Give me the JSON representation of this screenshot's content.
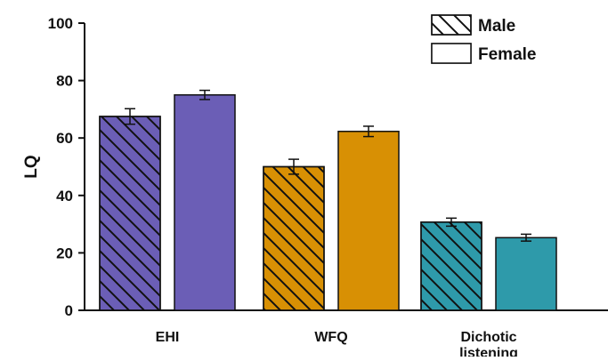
{
  "chart_data": {
    "type": "bar",
    "title": "",
    "xlabel": "",
    "ylabel": "LQ",
    "ylim": [
      0,
      100
    ],
    "yticks": [
      0,
      20,
      40,
      60,
      80,
      100
    ],
    "categories": [
      "EHI",
      "WFQ",
      "Dichotic listening"
    ],
    "category_label_lines": [
      [
        "EHI"
      ],
      [
        "WFQ"
      ],
      [
        "Dichotic",
        "listening"
      ]
    ],
    "category_colors": [
      "#6b5eb6",
      "#d89004",
      "#2e9aaa"
    ],
    "series": [
      {
        "name": "Male",
        "pattern": "diagonal-hatch",
        "values": [
          67.5,
          50.0,
          30.7
        ],
        "errors": [
          2.7,
          2.6,
          1.4
        ]
      },
      {
        "name": "Female",
        "pattern": "solid",
        "values": [
          75.0,
          62.3,
          25.3
        ],
        "errors": [
          1.6,
          1.8,
          1.2
        ]
      }
    ],
    "legend": {
      "position": "top-right",
      "entries": [
        "Male",
        "Female"
      ]
    },
    "grid": false
  }
}
